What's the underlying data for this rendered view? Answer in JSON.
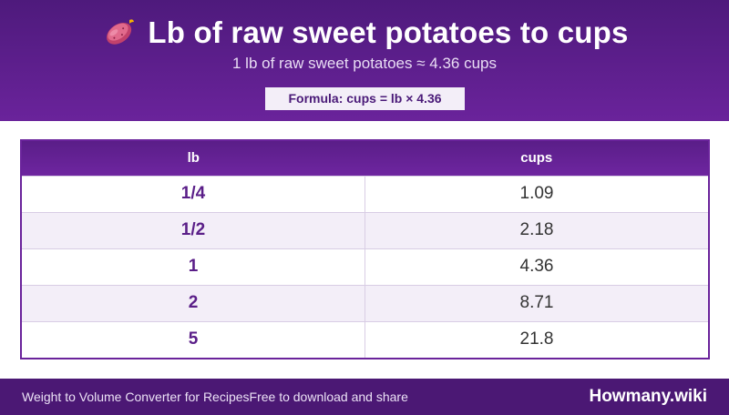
{
  "header": {
    "title": "Lb of raw sweet potatoes to cups",
    "icon": "sweet-potato-icon",
    "subtitle": "1 lb of raw sweet potatoes ≈ 4.36 cups",
    "formula": "Formula: cups = lb × 4.36"
  },
  "table": {
    "columns": [
      "lb",
      "cups"
    ],
    "rows": [
      {
        "lb": "1/4",
        "cups": "1.09"
      },
      {
        "lb": "1/2",
        "cups": "2.18"
      },
      {
        "lb": "1",
        "cups": "4.36"
      },
      {
        "lb": "2",
        "cups": "8.71"
      },
      {
        "lb": "5",
        "cups": "21.8"
      }
    ]
  },
  "footer": {
    "left_text": "Weight to Volume Converter for Recipes",
    "left_subtext": "Free to download and share",
    "brand": "Howmany.wiki"
  },
  "colors": {
    "header_bg": "#5b1f8b",
    "accent": "#6a239b",
    "row_alt": "#f3eef8",
    "footer_bg": "#4b1874"
  }
}
